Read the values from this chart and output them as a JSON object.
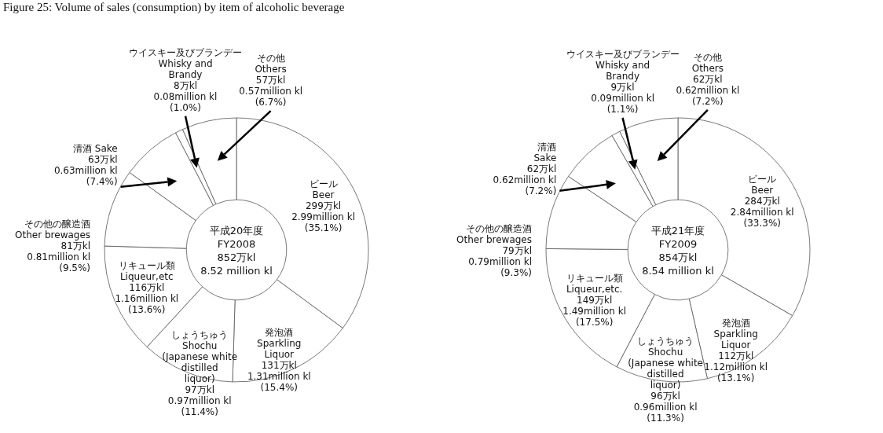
{
  "chart_data": [
    {
      "type": "donut",
      "title": "Figure 25: Volume of sales (consumption) by item of alcoholic beverage",
      "categories": [
        "ビール\nBeer",
        "発泡酒\nSparkling\nLiquor",
        "しょうちゅう\nShochu\n(Japanese white\ndistilled\nliquor)",
        "リキュール類\nLiqueur,etc",
        "その他の醸造酒\nOther brewages",
        "清酒 Sake",
        "ウイスキー及びブランデー\nWhisky and\nBrandy",
        "その他\nOthers"
      ],
      "values": [
        299,
        131,
        97,
        116,
        81,
        63,
        8,
        57
      ],
      "value_labels": [
        "299万kl\n2.99million kl\n(35.1%)",
        "131万kl\n1.31million kl\n(15.4%)",
        "97万kl\n0.97million kl\n(11.4%)",
        "116万kl\n1.16million kl\n(13.6%)",
        "81万kl\n0.81million kl\n(9.5%)",
        "63万kl\n0.63million kl\n(7.4%)",
        "8万kl\n0.08million kl\n(1.0%)",
        "57万kl\n0.57million kl\n(6.7%)"
      ],
      "colors": [
        "#ffffff",
        "#ffffff",
        "#ffffff",
        "#ffffff",
        "#ffffff",
        "#ffffff",
        "#ffffff",
        "#ffffff"
      ],
      "annotations": [
        "平成20年度",
        "FY2008",
        "852万kl",
        "8.52 million kl"
      ]
    },
    {
      "type": "donut",
      "categories": [
        "ビール\nBeer",
        "発泡酒\nSparkling\nLiquor",
        "しょうちゅう\nShochu\n(Japanese white\ndistilled\nliquor)",
        "リキュール類\nLiqueur,etc.",
        "その他の醸造酒\nOther brewages",
        "清酒\nSake",
        "ウイスキー及びブランデー\nWhisky and\nBrandy",
        "その他\nOthers"
      ],
      "values": [
        284,
        112,
        96,
        149,
        79,
        62,
        9,
        62
      ],
      "value_labels": [
        "284万kl\n2.84million kl\n(33.3%)",
        "112万kl\n1.12million kl\n(13.1%)",
        "96万kl\n0.96million kl\n(11.3%)",
        "149万kl\n1.49million kl\n(17.5%)",
        "79万kl\n0.79million kl\n(9.3%)",
        "62万kl\n0.62million kl\n(7.2%)",
        "9万kl\n0.09million kl\n(1.1%)",
        "62万kl\n0.62million kl\n(7.2%)"
      ],
      "colors": [
        "#ffffff",
        "#ffffff",
        "#ffffff",
        "#ffffff",
        "#ffffff",
        "#ffffff",
        "#ffffff",
        "#ffffff"
      ],
      "annotations": [
        "平成21年度",
        "FY2009",
        "854万kl",
        "8.54 million kl"
      ]
    }
  ]
}
